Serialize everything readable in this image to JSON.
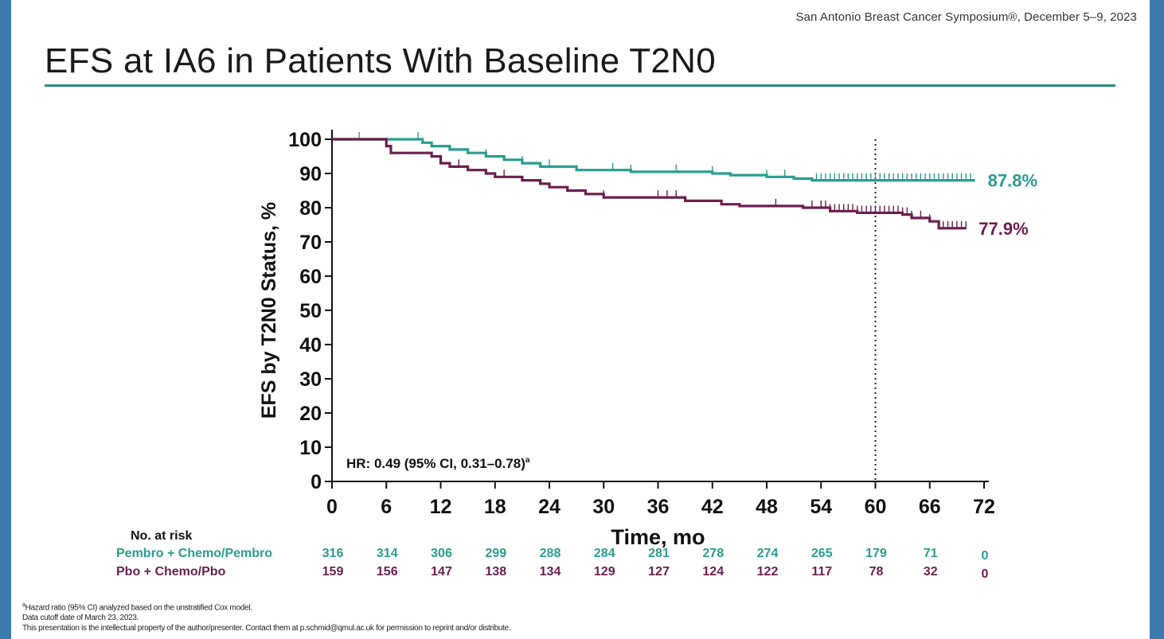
{
  "header": {
    "conference": "San Antonio Breast Cancer Symposium®, December 5–9, 2023",
    "title": "EFS at IA6 in Patients With Baseline T2N0"
  },
  "colors": {
    "pembro": "#2a9d8f",
    "placebo": "#6b1f4e",
    "rule": "#2a8f86",
    "frame": "#3a78ad"
  },
  "chart_data": {
    "type": "line",
    "step": true,
    "xlabel": "Time, mo",
    "ylabel": "EFS by T2N0 Status, %",
    "xlim": [
      0,
      72
    ],
    "ylim": [
      0,
      100
    ],
    "x_ticks": [
      0,
      6,
      12,
      18,
      24,
      30,
      36,
      42,
      48,
      54,
      60,
      66,
      72
    ],
    "y_ticks": [
      0,
      10,
      20,
      30,
      40,
      50,
      60,
      70,
      80,
      90,
      100
    ],
    "reference_line_x": 60,
    "annotation": "HR: 0.49 (95% CI, 0.31–0.78)",
    "annotation_superscript": "a",
    "series": [
      {
        "name": "Pembro + Chemo/Pembro",
        "color": "#2a9d8f",
        "end_label": "87.8%",
        "points": [
          [
            0,
            100
          ],
          [
            9.5,
            100
          ],
          [
            10,
            99
          ],
          [
            11,
            98
          ],
          [
            13,
            97
          ],
          [
            15,
            96
          ],
          [
            17,
            95
          ],
          [
            19,
            94
          ],
          [
            21,
            93
          ],
          [
            23,
            92
          ],
          [
            26,
            92
          ],
          [
            27,
            91
          ],
          [
            31,
            91
          ],
          [
            33,
            90.5
          ],
          [
            41,
            90.5
          ],
          [
            42,
            90
          ],
          [
            44,
            89.5
          ],
          [
            48,
            89
          ],
          [
            51,
            88.5
          ],
          [
            53,
            88
          ],
          [
            71,
            88
          ]
        ],
        "censor_x": [
          3,
          9.5,
          17,
          21,
          24,
          31,
          33,
          38,
          42,
          48,
          50,
          53.5,
          54,
          54.5,
          55,
          55.5,
          56,
          56.5,
          57,
          57.5,
          58,
          58.5,
          59,
          59.5,
          60,
          60.5,
          61,
          61.5,
          62,
          62.5,
          63,
          63.5,
          64,
          64.5,
          65,
          65.5,
          66,
          66.5,
          67,
          67.5,
          68,
          68.5,
          69,
          69.5,
          70,
          70.5
        ]
      },
      {
        "name": "Pbo + Chemo/Pbo",
        "color": "#6b1f4e",
        "end_label": "77.9%",
        "points": [
          [
            0,
            100
          ],
          [
            5.5,
            100
          ],
          [
            6,
            98
          ],
          [
            6.5,
            96
          ],
          [
            9,
            96
          ],
          [
            11,
            95
          ],
          [
            12,
            93
          ],
          [
            13,
            92
          ],
          [
            15,
            91
          ],
          [
            17,
            90
          ],
          [
            18,
            89
          ],
          [
            20,
            89
          ],
          [
            21,
            88
          ],
          [
            23,
            87
          ],
          [
            24,
            86
          ],
          [
            26,
            85
          ],
          [
            28,
            84
          ],
          [
            30,
            83
          ],
          [
            33,
            83
          ],
          [
            38,
            83
          ],
          [
            39,
            82
          ],
          [
            42,
            82
          ],
          [
            43,
            81
          ],
          [
            45,
            80.5
          ],
          [
            48,
            80.5
          ],
          [
            49,
            80.5
          ],
          [
            52,
            80
          ],
          [
            55,
            79
          ],
          [
            58,
            78.5
          ],
          [
            63,
            78
          ],
          [
            64,
            77
          ],
          [
            66,
            76
          ],
          [
            67,
            74
          ],
          [
            70,
            74
          ]
        ],
        "censor_x": [
          14,
          19,
          30,
          36,
          37,
          38,
          49,
          53,
          54,
          54.5,
          55,
          55.5,
          56,
          56.5,
          57,
          57.5,
          58,
          58.5,
          59,
          59.5,
          60,
          60.5,
          61,
          61.5,
          62,
          62.5,
          63,
          63.5,
          64,
          65,
          66,
          67,
          67.5,
          68,
          68.5,
          69,
          69.5,
          70
        ]
      }
    ],
    "risk_table": {
      "header": "No. at risk",
      "rows": [
        {
          "name": "Pembro + Chemo/Pembro",
          "color": "#2a9d8f",
          "values": [
            316,
            314,
            306,
            299,
            288,
            284,
            281,
            278,
            274,
            265,
            179,
            71,
            0
          ]
        },
        {
          "name": "Pbo + Chemo/Pbo",
          "color": "#6b1f4e",
          "values": [
            159,
            156,
            147,
            138,
            134,
            129,
            127,
            124,
            122,
            117,
            78,
            32,
            0
          ]
        }
      ]
    }
  },
  "footnotes": {
    "line1_sup": "a",
    "line1": "Hazard ratio (95% CI) analyzed based on the unstratified Cox model.",
    "line2": "Data cutoff date of March 23, 2023.",
    "line3": "This presentation is the intellectual property of the author/presenter. Contact them at p.schmid@qmul.ac.uk for permission to reprint and/or distribute."
  }
}
